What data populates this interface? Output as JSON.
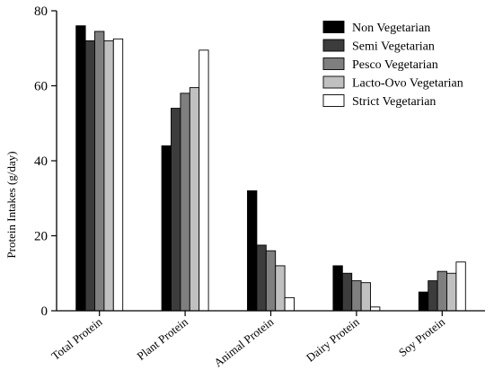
{
  "chart_data": {
    "type": "bar",
    "title": "",
    "xlabel": "",
    "ylabel": "Protein Intakes (g/day)",
    "ylim": [
      0,
      80
    ],
    "yticks": [
      0,
      20,
      40,
      60,
      80
    ],
    "grid": false,
    "legend_position": "top-right",
    "categories": [
      "Total Protein",
      "Plant Protein",
      "Animal Protein",
      "Dairy Protein",
      "Soy Protein"
    ],
    "series": [
      {
        "name": "Non Vegetarian",
        "color": "#000000",
        "values": [
          76,
          44,
          32,
          12,
          5
        ]
      },
      {
        "name": "Semi Vegetarian",
        "color": "#3c3c3c",
        "values": [
          72,
          54,
          17.5,
          10,
          8
        ]
      },
      {
        "name": "Pesco Vegetarian",
        "color": "#7f7f7f",
        "values": [
          74.5,
          58,
          16,
          8,
          10.5
        ]
      },
      {
        "name": "Lacto-Ovo Vegetarian",
        "color": "#c0c0c0",
        "values": [
          72,
          59.5,
          12,
          7.5,
          10
        ]
      },
      {
        "name": "Strict Vegetarian",
        "color": "#ffffff",
        "values": [
          72.5,
          69.5,
          3.5,
          1,
          13
        ]
      }
    ]
  }
}
